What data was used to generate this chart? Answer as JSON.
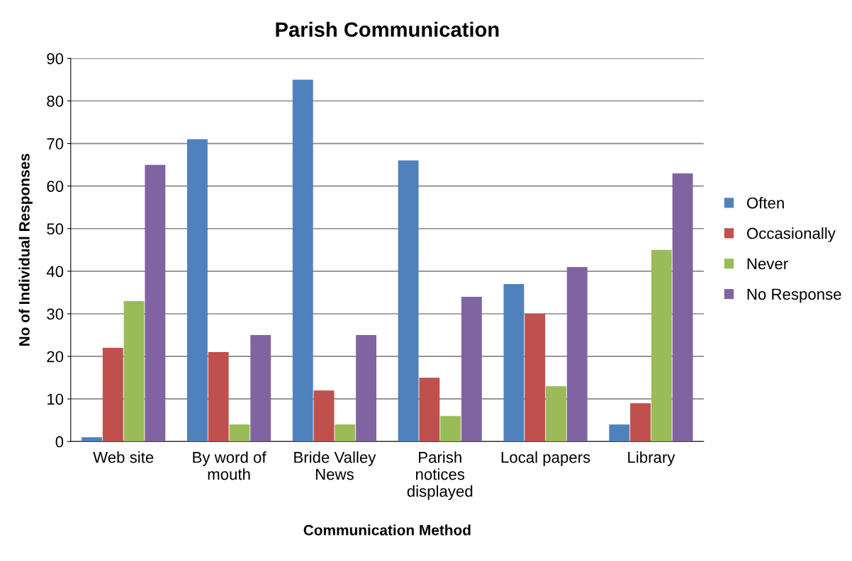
{
  "chart_data": {
    "type": "bar",
    "title": "Parish Communication",
    "xlabel": "Communication Method",
    "ylabel": "No of Individual Responses",
    "categories": [
      "Web site",
      "By word of mouth",
      "Bride Valley News",
      "Parish notices displayed",
      "Local papers",
      "Library"
    ],
    "series": [
      {
        "name": "Often",
        "color": "#4f81bd",
        "values": [
          1,
          71,
          85,
          66,
          37,
          4
        ]
      },
      {
        "name": "Occasionally",
        "color": "#c0504d",
        "values": [
          22,
          21,
          12,
          15,
          30,
          9
        ]
      },
      {
        "name": "Never",
        "color": "#9bbb59",
        "values": [
          33,
          4,
          4,
          6,
          13,
          45
        ]
      },
      {
        "name": "No Response",
        "color": "#8064a2",
        "values": [
          65,
          25,
          25,
          34,
          41,
          63
        ]
      }
    ],
    "ylim": [
      0,
      90
    ],
    "yticks": [
      0,
      10,
      20,
      30,
      40,
      50,
      60,
      70,
      80,
      90
    ],
    "grid": "y",
    "legend": "right"
  }
}
